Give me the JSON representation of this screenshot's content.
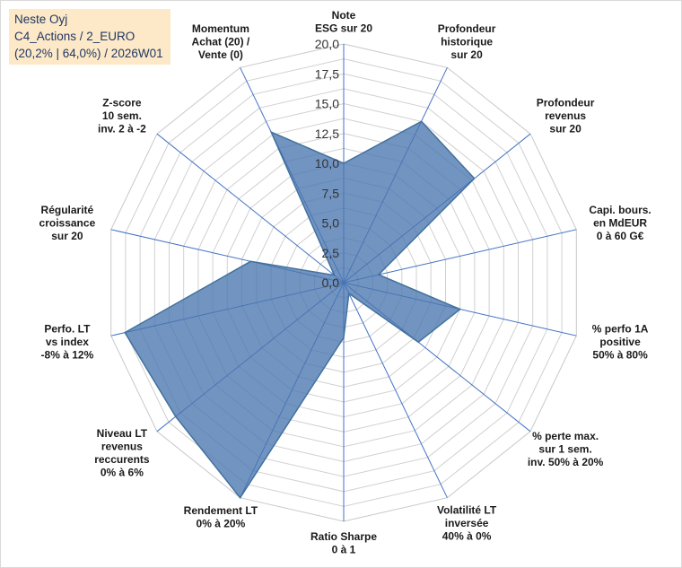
{
  "header": {
    "lines": [
      "Neste Oyj",
      "C4_Actions / 2_EURO",
      "(20,2% | 64,0%) / 2026W01"
    ]
  },
  "colors": {
    "fill": "#4a76b0",
    "stroke": "#41719c",
    "spoke": "#4472c4",
    "grid": "#d0d0d0",
    "infobox": "#fde9c7"
  },
  "chart_data": {
    "type": "radar",
    "rmin": 0,
    "rmax": 20,
    "ticks": [
      "0,0",
      "2,5",
      "5,0",
      "7,5",
      "10,0",
      "12,5",
      "15,0",
      "17,5",
      "20,0"
    ],
    "grid_rings": 16,
    "axes": [
      [
        "Note",
        "ESG sur 20"
      ],
      [
        "Profondeur",
        "historique",
        "sur 20"
      ],
      [
        "Profondeur",
        "revenus",
        "sur 20"
      ],
      [
        "Capi. bours.",
        "en MdEUR",
        "0 à 60 G€"
      ],
      [
        "% perfo 1A",
        "positive",
        "50% à 80%"
      ],
      [
        "% perte max.",
        "sur 1 sem.",
        "inv. 50% à 20%"
      ],
      [
        "Volatilité LT",
        "inversée",
        "40% à 0%"
      ],
      [
        "Ratio Sharpe",
        "0 à 1"
      ],
      [
        "Rendement LT",
        "0% à 20%"
      ],
      [
        "Niveau LT",
        "revenus",
        "reccurents",
        "0% à 6%"
      ],
      [
        "Perfo. LT",
        "vs index",
        "-8% à 12%"
      ],
      [
        "Régularité",
        "croissance",
        "sur 20"
      ],
      [
        "Z-score",
        "10 sem.",
        "inv. 2 à -2"
      ],
      [
        "Momentum",
        "Achat (20) /",
        "Vente (0)"
      ]
    ],
    "values": [
      10,
      15,
      14,
      3,
      10,
      8,
      1,
      4.6,
      20,
      18,
      18.8,
      8,
      1,
      14
    ]
  }
}
